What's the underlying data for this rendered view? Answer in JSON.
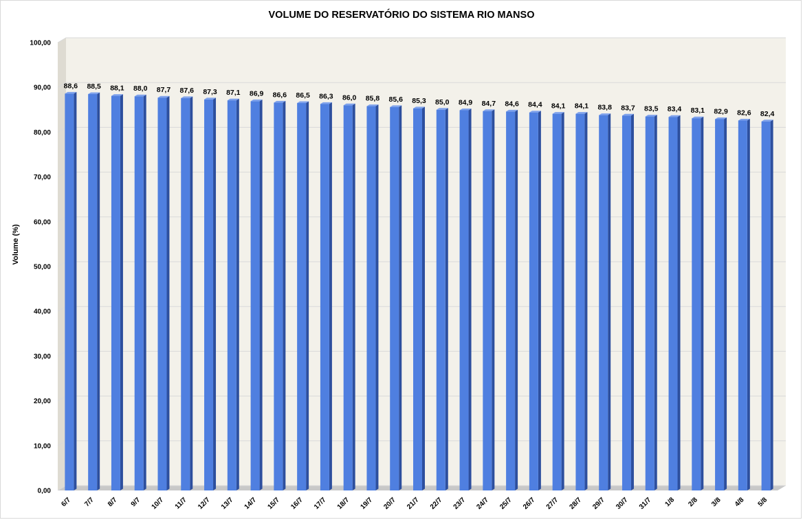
{
  "chart_data": {
    "type": "bar",
    "title": "VOLUME DO RESERVATÓRIO DO SISTEMA RIO MANSO",
    "xlabel": "",
    "ylabel": "Volume (%)",
    "ylim": [
      0,
      100
    ],
    "y_ticks": [
      "0,00",
      "10,00",
      "20,00",
      "30,00",
      "40,00",
      "50,00",
      "60,00",
      "70,00",
      "80,00",
      "90,00",
      "100,00"
    ],
    "grid": true,
    "style": "3d-column",
    "colors": {
      "bar_front": "#4f7fe0",
      "bar_side": "#2d4f9e",
      "bar_top": "#7fa2ec",
      "wall": "#f3f1ea",
      "floor": "#c8c8c8",
      "gridline": "#d9d9d9"
    },
    "categories": [
      "6/7",
      "7/7",
      "8/7",
      "9/7",
      "10/7",
      "11/7",
      "12/7",
      "13/7",
      "14/7",
      "15/7",
      "16/7",
      "17/7",
      "18/7",
      "19/7",
      "20/7",
      "21/7",
      "22/7",
      "23/7",
      "24/7",
      "25/7",
      "26/7",
      "27/7",
      "28/7",
      "29/7",
      "30/7",
      "31/7",
      "1/8",
      "2/8",
      "3/8",
      "4/8",
      "5/8"
    ],
    "values": [
      88.6,
      88.5,
      88.1,
      88.0,
      87.7,
      87.6,
      87.3,
      87.1,
      86.9,
      86.6,
      86.5,
      86.3,
      86.0,
      85.8,
      85.6,
      85.3,
      85.0,
      84.9,
      84.7,
      84.6,
      84.4,
      84.1,
      84.1,
      83.8,
      83.7,
      83.5,
      83.4,
      83.1,
      82.9,
      82.6,
      82.4
    ],
    "data_labels": [
      "88,6",
      "88,5",
      "88,1",
      "88,0",
      "87,7",
      "87,6",
      "87,3",
      "87,1",
      "86,9",
      "86,6",
      "86,5",
      "86,3",
      "86,0",
      "85,8",
      "85,6",
      "85,3",
      "85,0",
      "84,9",
      "84,7",
      "84,6",
      "84,4",
      "84,1",
      "84,1",
      "83,8",
      "83,7",
      "83,5",
      "83,4",
      "83,1",
      "82,9",
      "82,6",
      "82,4"
    ]
  }
}
